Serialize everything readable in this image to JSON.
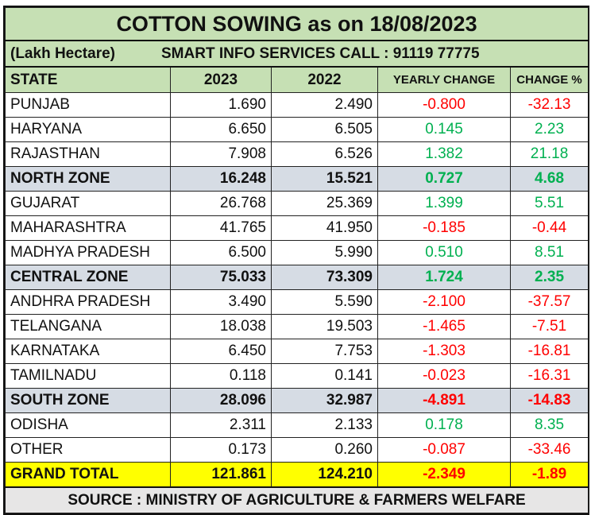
{
  "title": "COTTON SOWING  as on 18/08/2023",
  "unit": "(Lakh Hectare)",
  "contact": "SMART INFO SERVICES CALL : 91119 77775",
  "headers": [
    "STATE",
    "2023",
    "2022",
    "YEARLY CHANGE",
    "CHANGE %"
  ],
  "rows": [
    {
      "state": "PUNJAB",
      "y2023": "1.690",
      "y2022": "2.490",
      "change": "-0.800",
      "pct": "-32.13",
      "type": "state"
    },
    {
      "state": "HARYANA",
      "y2023": "6.650",
      "y2022": "6.505",
      "change": "0.145",
      "pct": "2.23",
      "type": "state"
    },
    {
      "state": "RAJASTHAN",
      "y2023": "7.908",
      "y2022": "6.526",
      "change": "1.382",
      "pct": "21.18",
      "type": "state"
    },
    {
      "state": "NORTH ZONE",
      "y2023": "16.248",
      "y2022": "15.521",
      "change": "0.727",
      "pct": "4.68",
      "type": "zone"
    },
    {
      "state": "GUJARAT",
      "y2023": "26.768",
      "y2022": "25.369",
      "change": "1.399",
      "pct": "5.51",
      "type": "state"
    },
    {
      "state": "MAHARASHTRA",
      "y2023": "41.765",
      "y2022": "41.950",
      "change": "-0.185",
      "pct": "-0.44",
      "type": "state"
    },
    {
      "state": "MADHYA PRADESH",
      "y2023": "6.500",
      "y2022": "5.990",
      "change": "0.510",
      "pct": "8.51",
      "type": "state"
    },
    {
      "state": "CENTRAL ZONE",
      "y2023": "75.033",
      "y2022": "73.309",
      "change": "1.724",
      "pct": "2.35",
      "type": "zone"
    },
    {
      "state": "ANDHRA PRADESH",
      "y2023": "3.490",
      "y2022": "5.590",
      "change": "-2.100",
      "pct": "-37.57",
      "type": "state"
    },
    {
      "state": "TELANGANA",
      "y2023": "18.038",
      "y2022": "19.503",
      "change": "-1.465",
      "pct": "-7.51",
      "type": "state"
    },
    {
      "state": "KARNATAKA",
      "y2023": "6.450",
      "y2022": "7.753",
      "change": "-1.303",
      "pct": "-16.81",
      "type": "state"
    },
    {
      "state": "TAMILNADU",
      "y2023": "0.118",
      "y2022": "0.141",
      "change": "-0.023",
      "pct": "-16.31",
      "type": "state"
    },
    {
      "state": "SOUTH ZONE",
      "y2023": "28.096",
      "y2022": "32.987",
      "change": "-4.891",
      "pct": "-14.83",
      "type": "zone"
    },
    {
      "state": "ODISHA",
      "y2023": "2.311",
      "y2022": "2.133",
      "change": "0.178",
      "pct": "8.35",
      "type": "state"
    },
    {
      "state": "OTHER",
      "y2023": "0.173",
      "y2022": "0.260",
      "change": "-0.087",
      "pct": "-33.46",
      "type": "state"
    },
    {
      "state": "GRAND TOTAL",
      "y2023": "121.861",
      "y2022": "124.210",
      "change": "-2.349",
      "pct": "-1.89",
      "type": "total"
    }
  ],
  "source": "SOURCE : MINISTRY OF AGRICULTURE & FARMERS WELFARE",
  "colors": {
    "header_bg": "#c6e0b4",
    "zone_bg": "#d6dce4",
    "total_bg": "#ffff00",
    "positive": "#00b050",
    "negative": "#ff0000"
  }
}
